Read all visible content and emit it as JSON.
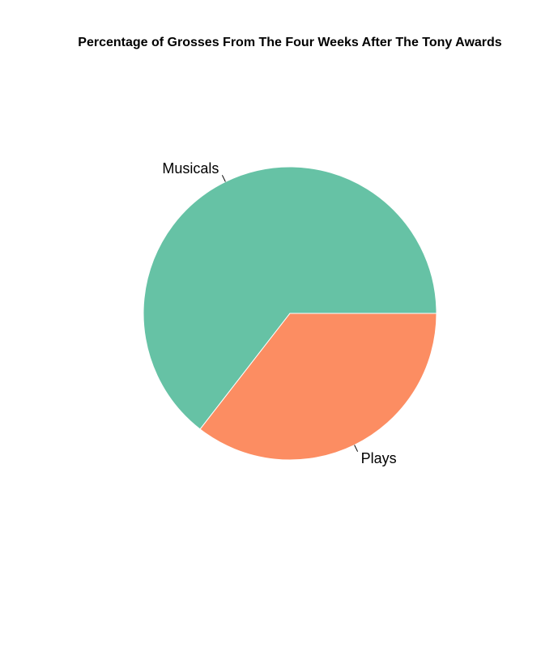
{
  "chart_data": {
    "type": "pie",
    "title": "Percentage of Grosses From The Four Weeks After The Tony Awards",
    "slices": [
      {
        "label": "Musicals",
        "value": 64.5,
        "color": "#66C2A5"
      },
      {
        "label": "Plays",
        "value": 35.5,
        "color": "#FC8D62"
      }
    ],
    "start_angle_deg": 0,
    "direction": "counterclockwise",
    "legend": "none"
  }
}
